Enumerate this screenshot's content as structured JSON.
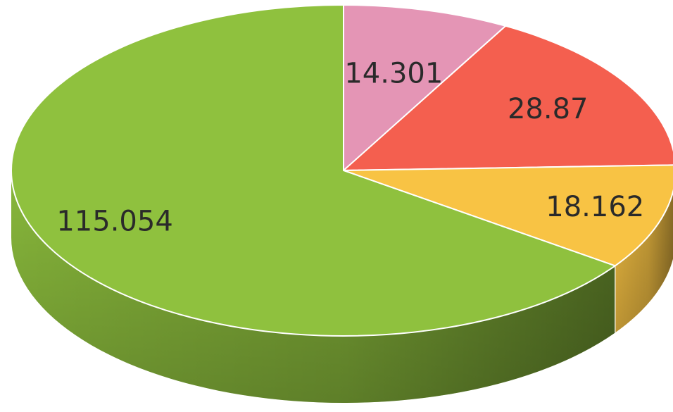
{
  "chart_data": {
    "type": "pie",
    "style": "3d",
    "legend": "none",
    "start_angle_deg": 0,
    "direction": "clockwise",
    "slices": [
      {
        "label": "14.301",
        "value": 14.301,
        "color": "#e495b5"
      },
      {
        "label": "28.87",
        "value": 28.87,
        "color": "#f45f4f"
      },
      {
        "label": "18.162",
        "value": 18.162,
        "color": "#f8c344"
      },
      {
        "label": "115.054",
        "value": 115.054,
        "color": "#8fc13e"
      }
    ]
  }
}
